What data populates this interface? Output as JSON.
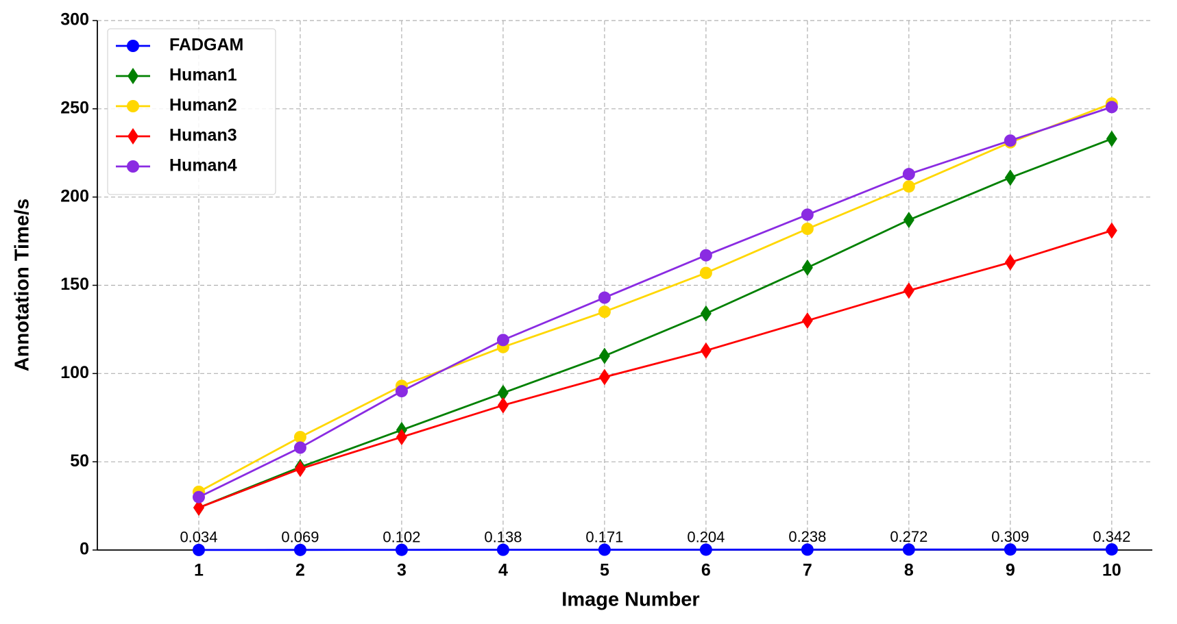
{
  "chart_data": {
    "type": "line",
    "xlabel": "Image Number",
    "ylabel": "Annotation Time/s",
    "x": [
      1,
      2,
      3,
      4,
      5,
      6,
      7,
      8,
      9,
      10
    ],
    "xlim": [
      0,
      10.4
    ],
    "xticks": [
      1,
      2,
      3,
      4,
      5,
      6,
      7,
      8,
      9,
      10
    ],
    "ylim": [
      0,
      300
    ],
    "yticks": [
      0,
      50,
      100,
      150,
      200,
      250,
      300
    ],
    "grid": true,
    "legend": "upper-left",
    "series": [
      {
        "name": "FADGAM",
        "color": "#0000ff",
        "marker": "circle",
        "show_values": true,
        "values": [
          0.034,
          0.069,
          0.102,
          0.138,
          0.171,
          0.204,
          0.238,
          0.272,
          0.309,
          0.342
        ]
      },
      {
        "name": "Human1",
        "color": "#008000",
        "marker": "diamond",
        "values": [
          24,
          47,
          68,
          89,
          110,
          134,
          160,
          187,
          211,
          233
        ]
      },
      {
        "name": "Human2",
        "color": "#ffd700",
        "marker": "circle",
        "values": [
          33,
          64,
          93,
          115,
          135,
          157,
          182,
          206,
          231,
          253
        ]
      },
      {
        "name": "Human3",
        "color": "#ff0000",
        "marker": "diamond",
        "values": [
          24,
          46,
          64,
          82,
          98,
          113,
          130,
          147,
          163,
          181
        ]
      },
      {
        "name": "Human4",
        "color": "#8a2be2",
        "marker": "circle",
        "values": [
          30,
          58,
          90,
          119,
          143,
          167,
          190,
          213,
          232,
          251
        ]
      }
    ]
  }
}
